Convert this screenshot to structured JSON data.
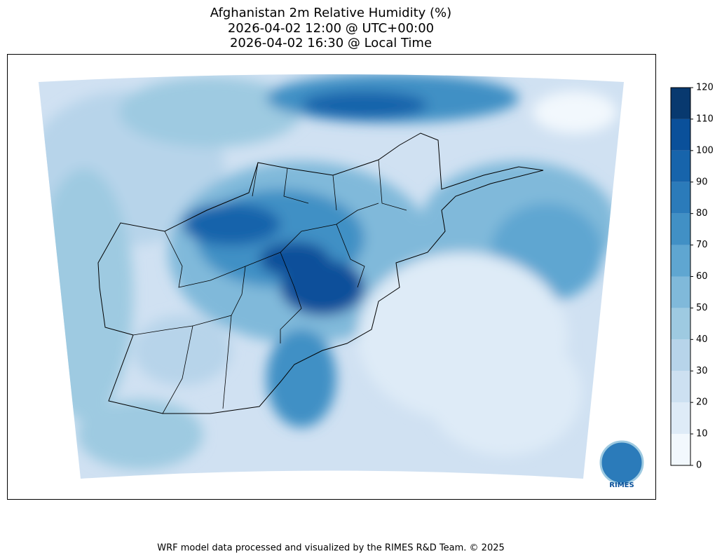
{
  "header": {
    "title_lines": [
      "Afghanistan 2m Relative Humidity (%)",
      "2026-04-02 12:00 @ UTC+00:00",
      "2026-04-02 16:30 @ Local Time"
    ]
  },
  "colorbar": {
    "lim": [
      0,
      120
    ],
    "ticks": [
      0,
      10,
      20,
      30,
      40,
      50,
      60,
      70,
      80,
      90,
      100,
      110,
      120
    ],
    "colors": [
      "#f2f8fd",
      "#deebf7",
      "#cde0f1",
      "#b7d4ea",
      "#9ecae1",
      "#80b9da",
      "#5fa6d1",
      "#4190c5",
      "#2b7bba",
      "#1764ab",
      "#0a509a",
      "#08396f"
    ]
  },
  "logo": {
    "text": "RIMES"
  },
  "footer": "WRF model data processed and visualized by the RIMES R&D Team. © 2025"
}
